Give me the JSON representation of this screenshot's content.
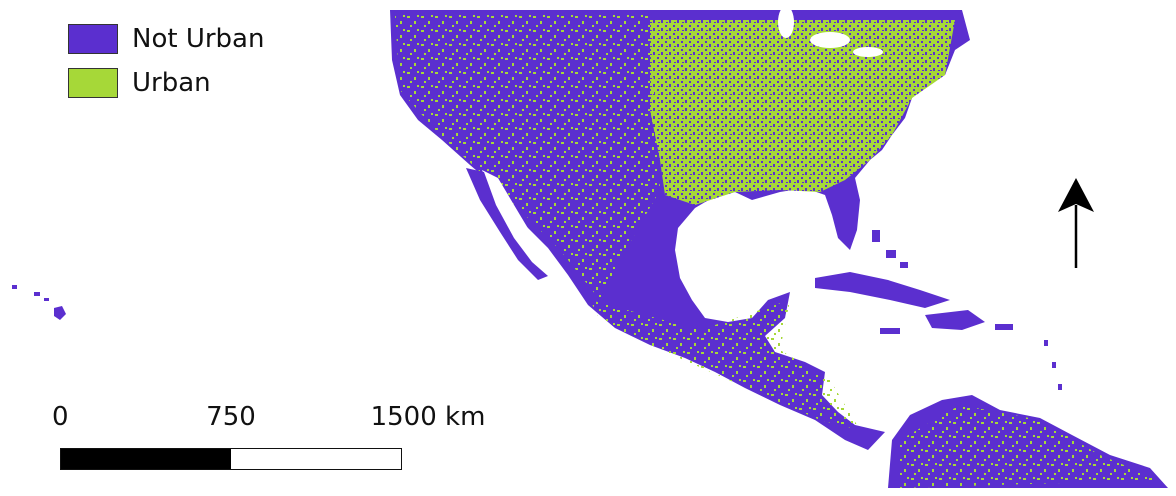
{
  "legend": {
    "items": [
      {
        "label": "Not Urban",
        "color": "#5b2fcf"
      },
      {
        "label": "Urban",
        "color": "#a6d838"
      }
    ]
  },
  "scale_bar": {
    "ticks": [
      "0",
      "750",
      "1500 km"
    ],
    "segment_colors": [
      "#000000",
      "#ffffff"
    ]
  },
  "north_arrow": {
    "icon": "north-arrow-icon"
  },
  "colors": {
    "not_urban": "#5b2fcf",
    "urban": "#a6d838",
    "water": "#ffffff"
  }
}
